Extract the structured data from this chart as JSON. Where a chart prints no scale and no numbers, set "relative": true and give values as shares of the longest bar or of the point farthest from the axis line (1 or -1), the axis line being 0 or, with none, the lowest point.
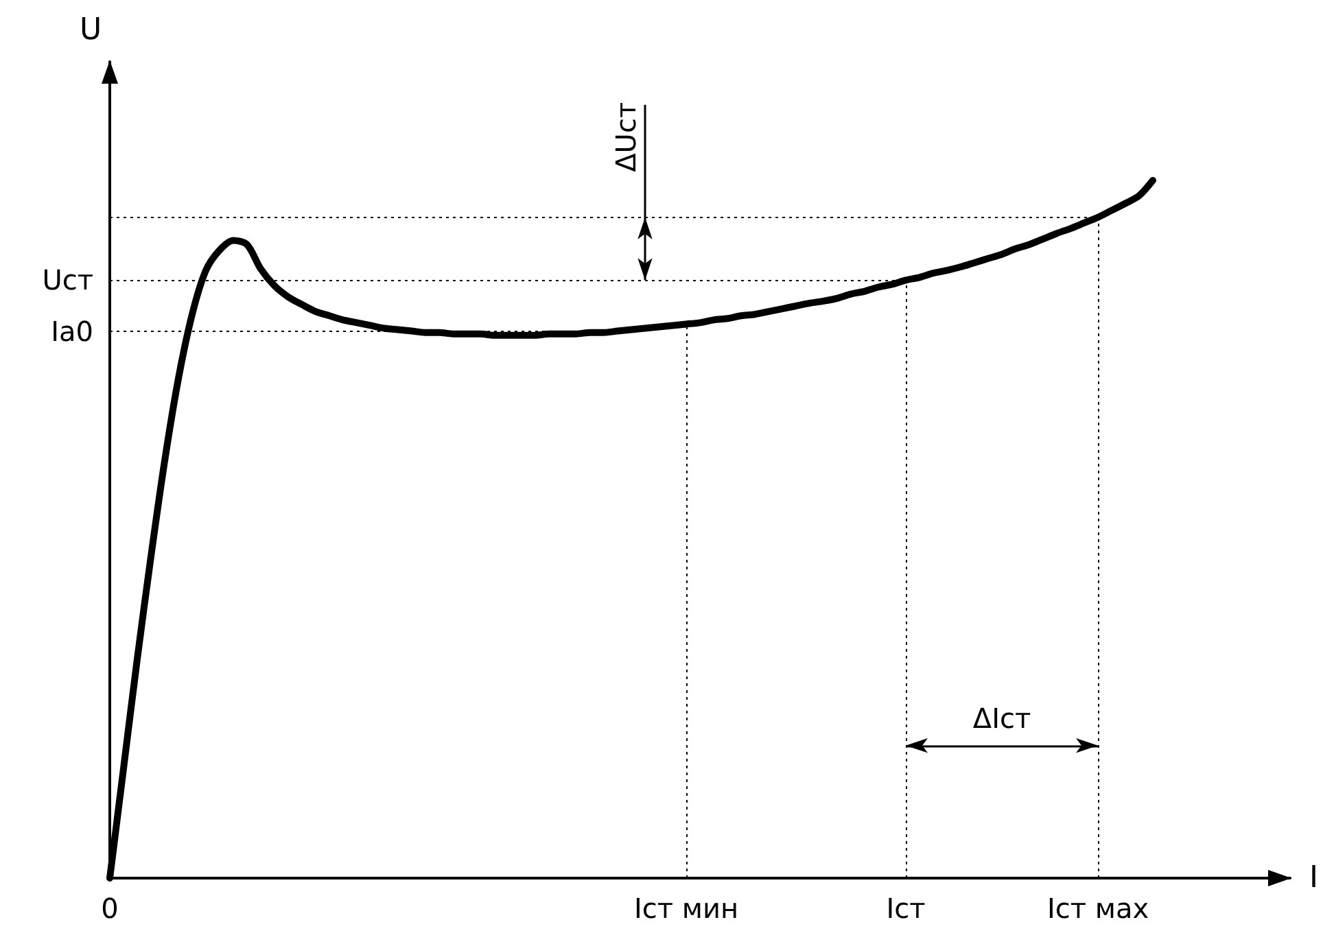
{
  "chart_data": {
    "type": "line",
    "xlabel": "I",
    "ylabel": "U",
    "relative": true,
    "color": "#000000",
    "marker": "none",
    "line_style": "solid",
    "grid": false,
    "categories": [
      "0",
      null,
      null,
      null,
      null,
      null,
      null,
      null,
      null,
      null,
      null,
      null,
      null,
      null,
      null,
      null,
      null,
      null,
      null,
      null,
      null,
      null,
      null,
      null,
      null,
      null,
      null,
      null,
      null,
      null,
      null,
      null,
      null,
      null,
      null,
      null,
      null,
      null,
      null,
      null,
      null,
      null,
      "Iст мин",
      null,
      null,
      null,
      null,
      null,
      null,
      null,
      null,
      null,
      null,
      null,
      null,
      null,
      null,
      null,
      "Iст",
      null,
      null,
      null,
      null,
      null,
      null,
      null,
      null,
      null,
      null,
      null,
      null,
      null,
      "Iст мах",
      null,
      null,
      null,
      null,
      null,
      null,
      null,
      null,
      null,
      null,
      null,
      null,
      null,
      null
    ],
    "values": [
      0,
      0.157,
      0.314,
      0.461,
      0.598,
      0.716,
      0.808,
      0.871,
      0.9,
      0.914,
      0.908,
      0.873,
      0.849,
      0.833,
      0.822,
      0.812,
      0.806,
      0.8,
      0.796,
      0.792,
      0.788,
      0.786,
      0.784,
      0.782,
      0.782,
      0.78,
      0.78,
      0.78,
      0.778,
      0.778,
      0.778,
      0.778,
      0.78,
      0.78,
      0.78,
      0.782,
      0.782,
      0.784,
      0.786,
      0.788,
      0.79,
      0.792,
      0.794,
      0.796,
      0.8,
      0.802,
      0.806,
      0.808,
      0.812,
      0.816,
      0.82,
      0.824,
      0.827,
      0.831,
      0.837,
      0.841,
      0.847,
      0.851,
      0.857,
      0.861,
      0.867,
      0.871,
      0.876,
      0.882,
      0.888,
      0.894,
      0.902,
      0.908,
      0.916,
      0.924,
      0.931,
      0.939,
      0.947,
      0.957,
      0.967,
      0.978,
      1,
      null,
      null,
      null,
      null,
      null,
      null,
      null,
      null,
      null,
      null
    ],
    "ref_lines": [
      {
        "axis": "y",
        "value": 0.947,
        "label": null,
        "line_style": "dotted"
      },
      {
        "axis": "y",
        "value": 0.857,
        "label": "Uст",
        "line_style": "dotted"
      },
      {
        "axis": "y",
        "value": 0.784,
        "label": "Ia0",
        "line_style": "dotted"
      },
      {
        "axis": "x",
        "value": "Iст мин",
        "label": null,
        "line_style": "dotted"
      },
      {
        "axis": "x",
        "value": "Iст",
        "label": null,
        "line_style": "dotted"
      },
      {
        "axis": "x",
        "value": "Iст мах",
        "label": null,
        "line_style": "dotted"
      }
    ],
    "annotations": [
      {
        "text": "ΔUст",
        "y": 0.947
      },
      {
        "text": "ΔIст",
        "x": "Iст",
        "y": 0.19
      }
    ]
  }
}
